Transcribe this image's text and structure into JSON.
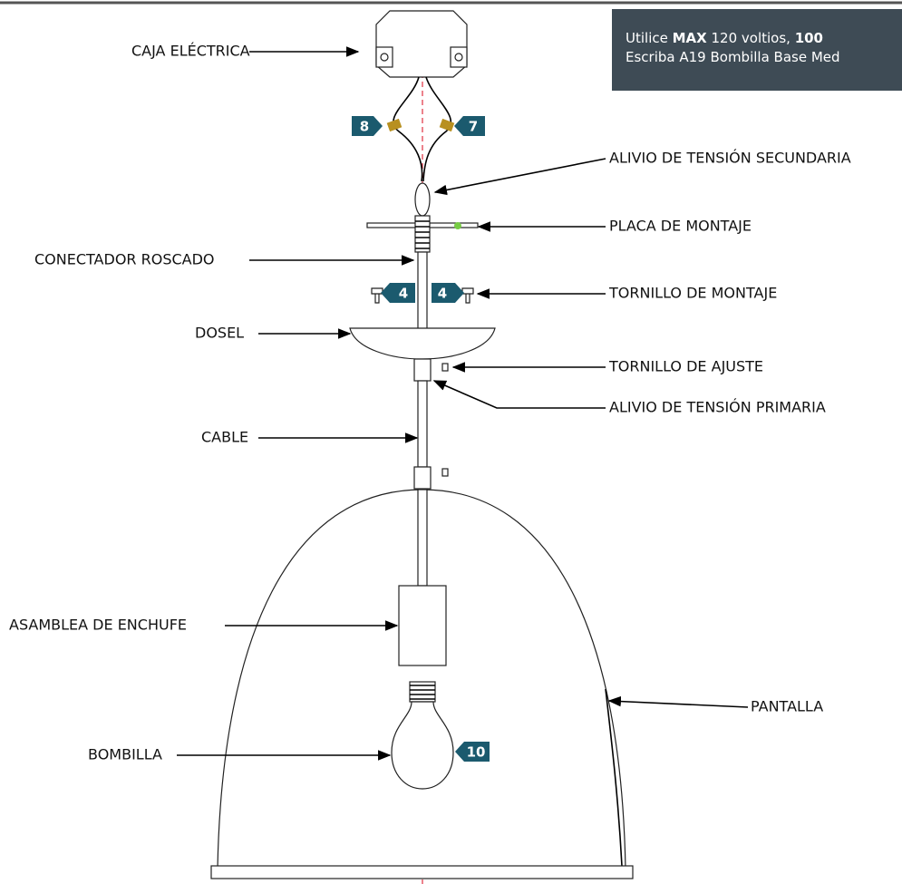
{
  "note": {
    "line1": {
      "a": "Utilice ",
      "b": "MAX",
      "c": " 120 voltios, ",
      "d": "100"
    },
    "line2": "Escriba A19 Bombilla Base Med"
  },
  "labels": [
    "CAJA ELÉCTRICA",
    "ALIVIO DE TENSIÓN SECUNDARIA",
    "PLACA DE MONTAJE",
    "CONECTADOR ROSCADO",
    "TORNILLO DE MONTAJE",
    "DOSEL",
    "TORNILLO DE AJUSTE",
    "ALIVIO DE TENSIÓN PRIMARIA",
    "CABLE",
    "ASAMBLEA DE ENCHUFE",
    "PANTALLA",
    "BOMBILLA"
  ],
  "badges": [
    "8",
    "7",
    "4",
    "4",
    "10"
  ]
}
